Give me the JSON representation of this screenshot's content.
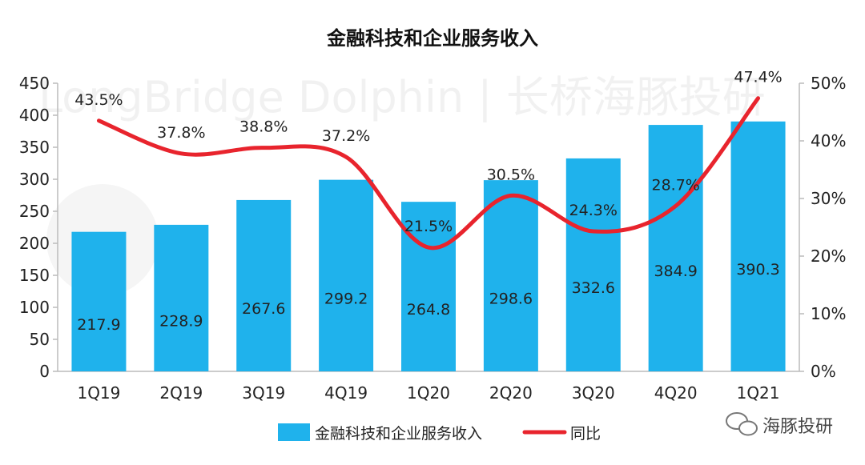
{
  "chart_data": {
    "type": "bar",
    "title": "金融科技和企业服务收入",
    "categories": [
      "1Q19",
      "2Q19",
      "3Q19",
      "4Q19",
      "1Q20",
      "2Q20",
      "3Q20",
      "4Q20",
      "1Q21"
    ],
    "series": [
      {
        "name": "金融科技和企业服务收入",
        "type": "bar",
        "axis": "left",
        "values": [
          217.9,
          228.9,
          267.6,
          299.2,
          264.8,
          298.6,
          332.6,
          384.9,
          390.3
        ],
        "labels": [
          "217.9",
          "228.9",
          "267.6",
          "299.2",
          "264.8",
          "298.6",
          "332.6",
          "384.9",
          "390.3"
        ]
      },
      {
        "name": "同比",
        "type": "line",
        "axis": "right",
        "values": [
          43.5,
          37.8,
          38.8,
          37.2,
          21.5,
          30.5,
          24.3,
          28.7,
          47.4
        ],
        "labels": [
          "43.5%",
          "37.8%",
          "38.8%",
          "37.2%",
          "21.5%",
          "30.5%",
          "24.3%",
          "28.7%",
          "47.4%"
        ]
      }
    ],
    "y_left": {
      "min": 0,
      "max": 450,
      "ticks": [
        "0",
        "50",
        "100",
        "150",
        "200",
        "250",
        "300",
        "350",
        "400",
        "450"
      ]
    },
    "y_right": {
      "min": 0,
      "max": 50,
      "ticks": [
        "0%",
        "10%",
        "20%",
        "30%",
        "40%",
        "50%"
      ]
    },
    "grid": false,
    "legend": "bottom-center"
  },
  "colors": {
    "bar": "#1fb2ec",
    "line": "#e8242d",
    "axis": "#bbbbbb",
    "text": "#222222"
  },
  "watermark": {
    "text": "LongBridge Dolphin | 长桥海豚投研",
    "badge": "海豚投研"
  }
}
